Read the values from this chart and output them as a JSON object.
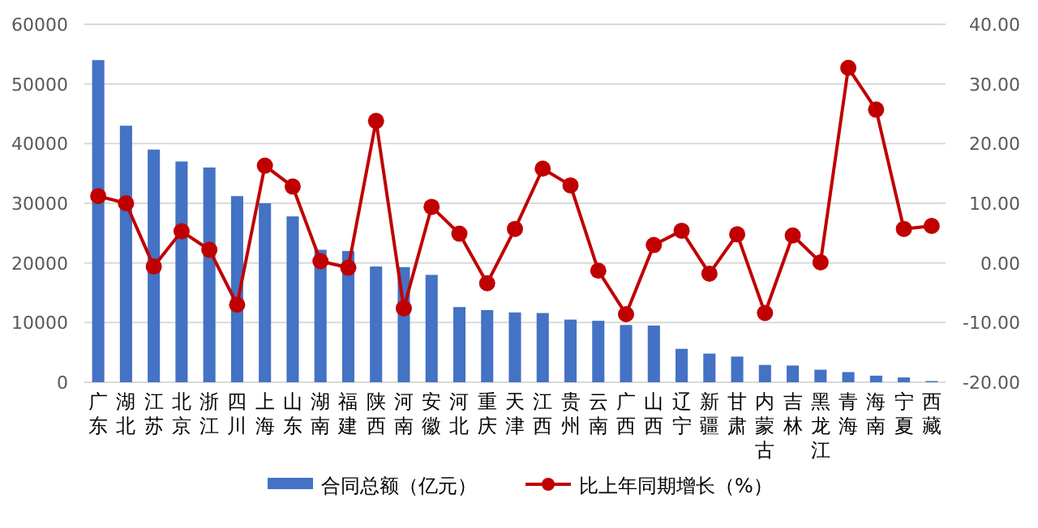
{
  "chart_data": {
    "type": "bar",
    "categories": [
      "广东",
      "湖北",
      "江苏",
      "北京",
      "浙江",
      "四川",
      "上海",
      "山东",
      "湖南",
      "福建",
      "陕西",
      "河南",
      "安徽",
      "河北",
      "重庆",
      "天津",
      "江西",
      "贵州",
      "云南",
      "广西",
      "山西",
      "辽宁",
      "新疆",
      "甘肃",
      "内蒙古",
      "吉林",
      "黑龙江",
      "青海",
      "海南",
      "宁夏",
      "西藏"
    ],
    "series": [
      {
        "name": "合同总额（亿元）",
        "color": "#4472c4",
        "values": [
          54000,
          43000,
          39000,
          37000,
          36000,
          31200,
          30000,
          27800,
          22200,
          22000,
          19400,
          19300,
          18000,
          12600,
          12100,
          11700,
          11600,
          10500,
          10300,
          9600,
          9500,
          5600,
          4800,
          4300,
          2900,
          2800,
          2100,
          1700,
          1100,
          800,
          200
        ]
      },
      {
        "name": "比上年同期增长（%）",
        "type": "line",
        "axis": "y2",
        "color": "#c00000",
        "marker": "circle",
        "values": [
          11.2,
          10.0,
          -0.6,
          5.3,
          2.2,
          -7.0,
          16.3,
          12.8,
          0.3,
          -0.8,
          23.8,
          -7.6,
          9.4,
          4.9,
          -3.4,
          5.7,
          15.8,
          13.0,
          -1.3,
          -8.6,
          3.0,
          5.4,
          -1.8,
          4.8,
          -8.4,
          4.6,
          0.1,
          32.7,
          25.7,
          5.7,
          6.2
        ]
      }
    ],
    "ylim": [
      0,
      60000
    ],
    "yticks": [
      0,
      10000,
      20000,
      30000,
      40000,
      50000,
      60000
    ],
    "y2lim": [
      -20,
      40
    ],
    "y2ticks": [
      {
        "value": -20,
        "label": "-20.00"
      },
      {
        "value": -10,
        "label": "-10.00"
      },
      {
        "value": 0,
        "label": "0.00"
      },
      {
        "value": 10,
        "label": "10.00"
      },
      {
        "value": 20,
        "label": "20.00"
      },
      {
        "value": 30,
        "label": "30.00"
      },
      {
        "value": 40,
        "label": "40.00"
      }
    ],
    "grid": "y",
    "legend": "bottom"
  }
}
